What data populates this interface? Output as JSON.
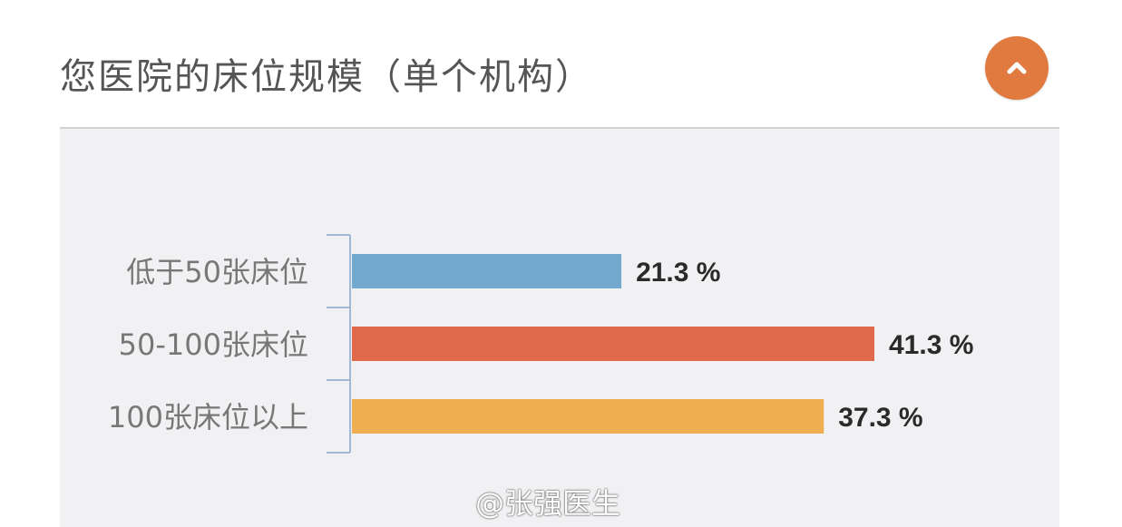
{
  "header": {
    "title": "您医院的床位规模（单个机构）",
    "collapse_icon": "chevron-up-icon",
    "collapse_color": "#e07a3e"
  },
  "watermark": "@张强医生",
  "chart_data": {
    "type": "bar",
    "orientation": "horizontal",
    "categories": [
      "低于50张床位",
      "50-100张床位",
      "100张床位以上"
    ],
    "values": [
      21.3,
      41.3,
      37.3
    ],
    "value_labels": [
      "21.3 %",
      "41.3 %",
      "37.3 %"
    ],
    "colors": [
      "#74a9cf",
      "#e0694b",
      "#efae52"
    ],
    "title": "",
    "xlabel": "",
    "ylabel": "",
    "xlim": [
      0,
      41.3
    ],
    "grid": false,
    "legend": "none"
  }
}
